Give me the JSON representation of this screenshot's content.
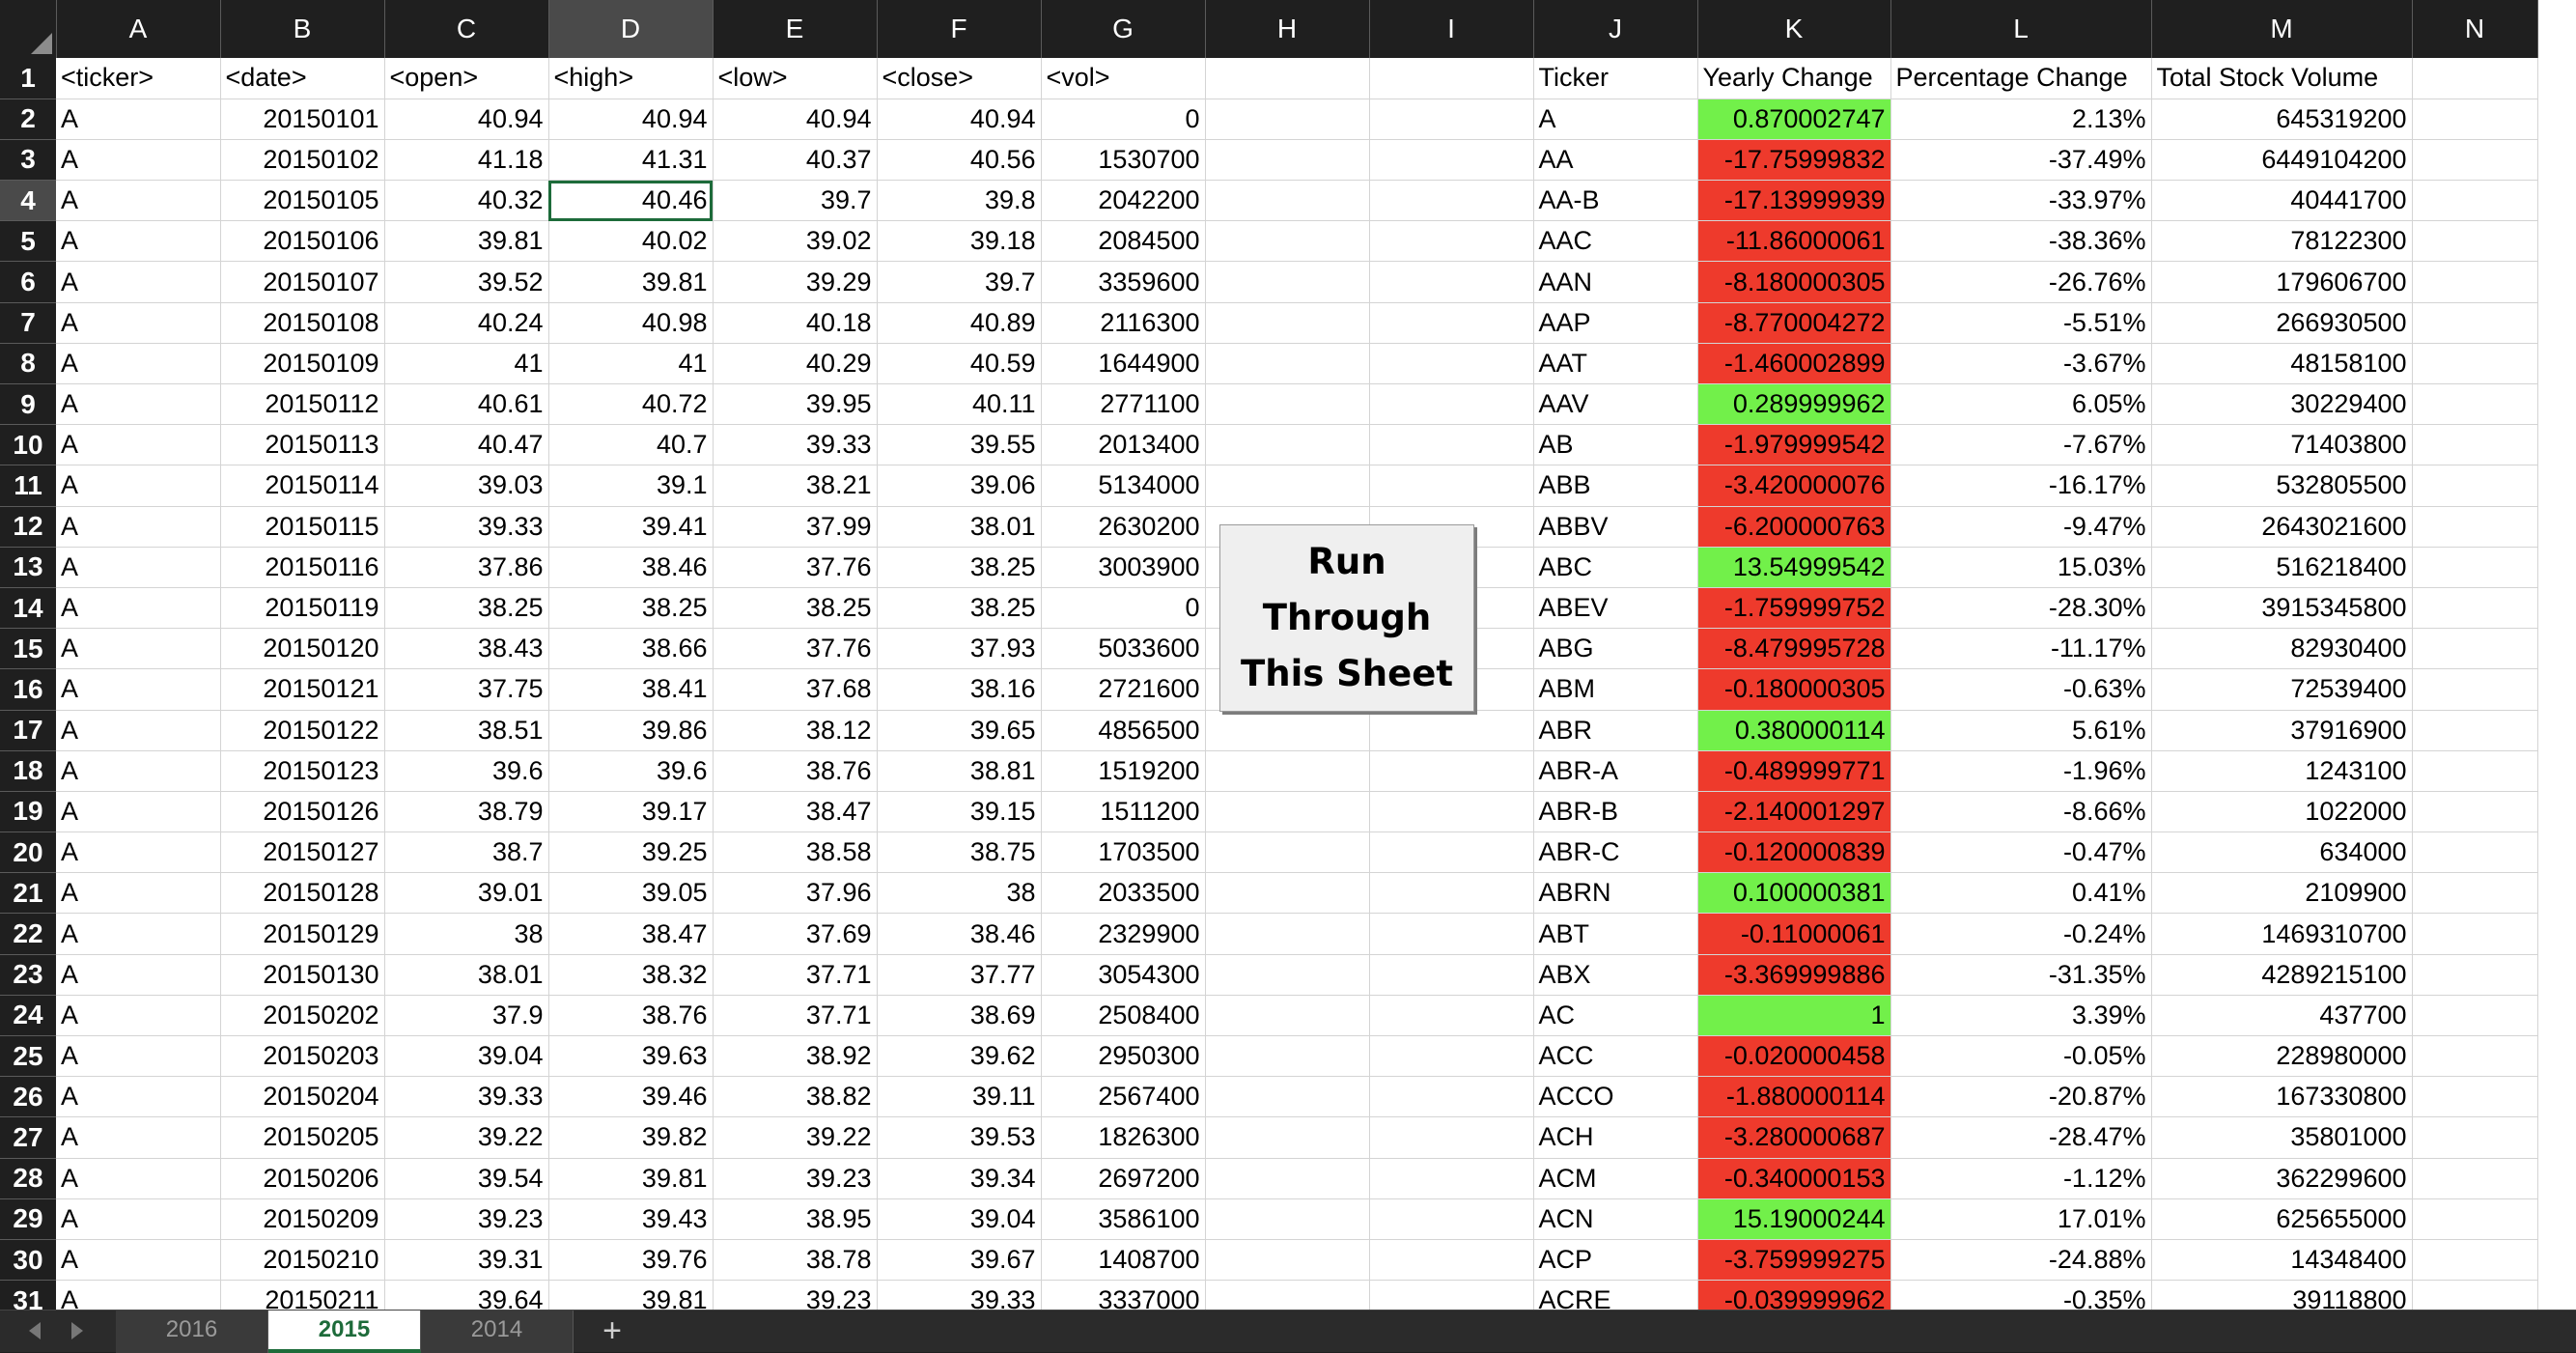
{
  "columns": [
    "A",
    "B",
    "C",
    "D",
    "E",
    "F",
    "G",
    "H",
    "I",
    "J",
    "K",
    "L",
    "M",
    "N"
  ],
  "selected_column": "D",
  "selected_row": 4,
  "active_cell": {
    "col": 3,
    "row": 4
  },
  "header_row": [
    "<ticker>",
    "<date>",
    "<open>",
    "<high>",
    "<low>",
    "<close>",
    "<vol>",
    "",
    "",
    "Ticker",
    "Yearly Change",
    "Percentage Change",
    "Total Stock Volume",
    ""
  ],
  "rows": [
    [
      "A",
      "20150101",
      "40.94",
      "40.94",
      "40.94",
      "40.94",
      "0",
      "",
      "",
      "A",
      "0.870002747",
      "2.13%",
      "645319200",
      ""
    ],
    [
      "A",
      "20150102",
      "41.18",
      "41.31",
      "40.37",
      "40.56",
      "1530700",
      "",
      "",
      "AA",
      "-17.75999832",
      "-37.49%",
      "6449104200",
      ""
    ],
    [
      "A",
      "20150105",
      "40.32",
      "40.46",
      "39.7",
      "39.8",
      "2042200",
      "",
      "",
      "AA-B",
      "-17.13999939",
      "-33.97%",
      "40441700",
      ""
    ],
    [
      "A",
      "20150106",
      "39.81",
      "40.02",
      "39.02",
      "39.18",
      "2084500",
      "",
      "",
      "AAC",
      "-11.86000061",
      "-38.36%",
      "78122300",
      ""
    ],
    [
      "A",
      "20150107",
      "39.52",
      "39.81",
      "39.29",
      "39.7",
      "3359600",
      "",
      "",
      "AAN",
      "-8.180000305",
      "-26.76%",
      "179606700",
      ""
    ],
    [
      "A",
      "20150108",
      "40.24",
      "40.98",
      "40.18",
      "40.89",
      "2116300",
      "",
      "",
      "AAP",
      "-8.770004272",
      "-5.51%",
      "266930500",
      ""
    ],
    [
      "A",
      "20150109",
      "41",
      "41",
      "40.29",
      "40.59",
      "1644900",
      "",
      "",
      "AAT",
      "-1.460002899",
      "-3.67%",
      "48158100",
      ""
    ],
    [
      "A",
      "20150112",
      "40.61",
      "40.72",
      "39.95",
      "40.11",
      "2771100",
      "",
      "",
      "AAV",
      "0.289999962",
      "6.05%",
      "30229400",
      ""
    ],
    [
      "A",
      "20150113",
      "40.47",
      "40.7",
      "39.33",
      "39.55",
      "2013400",
      "",
      "",
      "AB",
      "-1.979999542",
      "-7.67%",
      "71403800",
      ""
    ],
    [
      "A",
      "20150114",
      "39.03",
      "39.1",
      "38.21",
      "39.06",
      "5134000",
      "",
      "",
      "ABB",
      "-3.420000076",
      "-16.17%",
      "532805500",
      ""
    ],
    [
      "A",
      "20150115",
      "39.33",
      "39.41",
      "37.99",
      "38.01",
      "2630200",
      "",
      "",
      "ABBV",
      "-6.200000763",
      "-9.47%",
      "2643021600",
      ""
    ],
    [
      "A",
      "20150116",
      "37.86",
      "38.46",
      "37.76",
      "38.25",
      "3003900",
      "",
      "",
      "ABC",
      "13.54999542",
      "15.03%",
      "516218400",
      ""
    ],
    [
      "A",
      "20150119",
      "38.25",
      "38.25",
      "38.25",
      "38.25",
      "0",
      "",
      "",
      "ABEV",
      "-1.759999752",
      "-28.30%",
      "3915345800",
      ""
    ],
    [
      "A",
      "20150120",
      "38.43",
      "38.66",
      "37.76",
      "37.93",
      "5033600",
      "",
      "",
      "ABG",
      "-8.479995728",
      "-11.17%",
      "82930400",
      ""
    ],
    [
      "A",
      "20150121",
      "37.75",
      "38.41",
      "37.68",
      "38.16",
      "2721600",
      "",
      "",
      "ABM",
      "-0.180000305",
      "-0.63%",
      "72539400",
      ""
    ],
    [
      "A",
      "20150122",
      "38.51",
      "39.86",
      "38.12",
      "39.65",
      "4856500",
      "",
      "",
      "ABR",
      "0.380000114",
      "5.61%",
      "37916900",
      ""
    ],
    [
      "A",
      "20150123",
      "39.6",
      "39.6",
      "38.76",
      "38.81",
      "1519200",
      "",
      "",
      "ABR-A",
      "-0.489999771",
      "-1.96%",
      "1243100",
      ""
    ],
    [
      "A",
      "20150126",
      "38.79",
      "39.17",
      "38.47",
      "39.15",
      "1511200",
      "",
      "",
      "ABR-B",
      "-2.140001297",
      "-8.66%",
      "1022000",
      ""
    ],
    [
      "A",
      "20150127",
      "38.7",
      "39.25",
      "38.58",
      "38.75",
      "1703500",
      "",
      "",
      "ABR-C",
      "-0.120000839",
      "-0.47%",
      "634000",
      ""
    ],
    [
      "A",
      "20150128",
      "39.01",
      "39.05",
      "37.96",
      "38",
      "2033500",
      "",
      "",
      "ABRN",
      "0.100000381",
      "0.41%",
      "2109900",
      ""
    ],
    [
      "A",
      "20150129",
      "38",
      "38.47",
      "37.69",
      "38.46",
      "2329900",
      "",
      "",
      "ABT",
      "-0.11000061",
      "-0.24%",
      "1469310700",
      ""
    ],
    [
      "A",
      "20150130",
      "38.01",
      "38.32",
      "37.71",
      "37.77",
      "3054300",
      "",
      "",
      "ABX",
      "-3.369999886",
      "-31.35%",
      "4289215100",
      ""
    ],
    [
      "A",
      "20150202",
      "37.9",
      "38.76",
      "37.71",
      "38.69",
      "2508400",
      "",
      "",
      "AC",
      "1",
      "3.39%",
      "437700",
      ""
    ],
    [
      "A",
      "20150203",
      "39.04",
      "39.63",
      "38.92",
      "39.62",
      "2950300",
      "",
      "",
      "ACC",
      "-0.020000458",
      "-0.05%",
      "228980000",
      ""
    ],
    [
      "A",
      "20150204",
      "39.33",
      "39.46",
      "38.82",
      "39.11",
      "2567400",
      "",
      "",
      "ACCO",
      "-1.880000114",
      "-20.87%",
      "167330800",
      ""
    ],
    [
      "A",
      "20150205",
      "39.22",
      "39.82",
      "39.22",
      "39.53",
      "1826300",
      "",
      "",
      "ACH",
      "-3.280000687",
      "-28.47%",
      "35801000",
      ""
    ],
    [
      "A",
      "20150206",
      "39.54",
      "39.81",
      "39.23",
      "39.34",
      "2697200",
      "",
      "",
      "ACM",
      "-0.340000153",
      "-1.12%",
      "362299600",
      ""
    ],
    [
      "A",
      "20150209",
      "39.23",
      "39.43",
      "38.95",
      "39.04",
      "3586100",
      "",
      "",
      "ACN",
      "15.19000244",
      "17.01%",
      "625655000",
      ""
    ],
    [
      "A",
      "20150210",
      "39.31",
      "39.76",
      "38.78",
      "39.67",
      "1408700",
      "",
      "",
      "ACP",
      "-3.759999275",
      "-24.88%",
      "14348400",
      ""
    ],
    [
      "A",
      "20150211",
      "39.64",
      "39.81",
      "39.23",
      "39.33",
      "3337000",
      "",
      "",
      "ACRE",
      "-0.039999962",
      "-0.35%",
      "39118800",
      ""
    ]
  ],
  "button": {
    "line1": "Run",
    "line2": "Through",
    "line3": "This Sheet"
  },
  "tabs": [
    {
      "label": "2016",
      "active": false
    },
    {
      "label": "2015",
      "active": true
    },
    {
      "label": "2014",
      "active": false
    }
  ],
  "add_sheet_label": "+",
  "colors": {
    "positive": "#72f04a",
    "negative": "#ee3a2c",
    "accent": "#1d6b3a",
    "header_bg": "#1f1f1f"
  },
  "icons": {
    "nav_left": "chevron-left-icon",
    "nav_right": "chevron-right-icon",
    "add": "plus-icon",
    "select_all": "select-all-triangle-icon"
  }
}
